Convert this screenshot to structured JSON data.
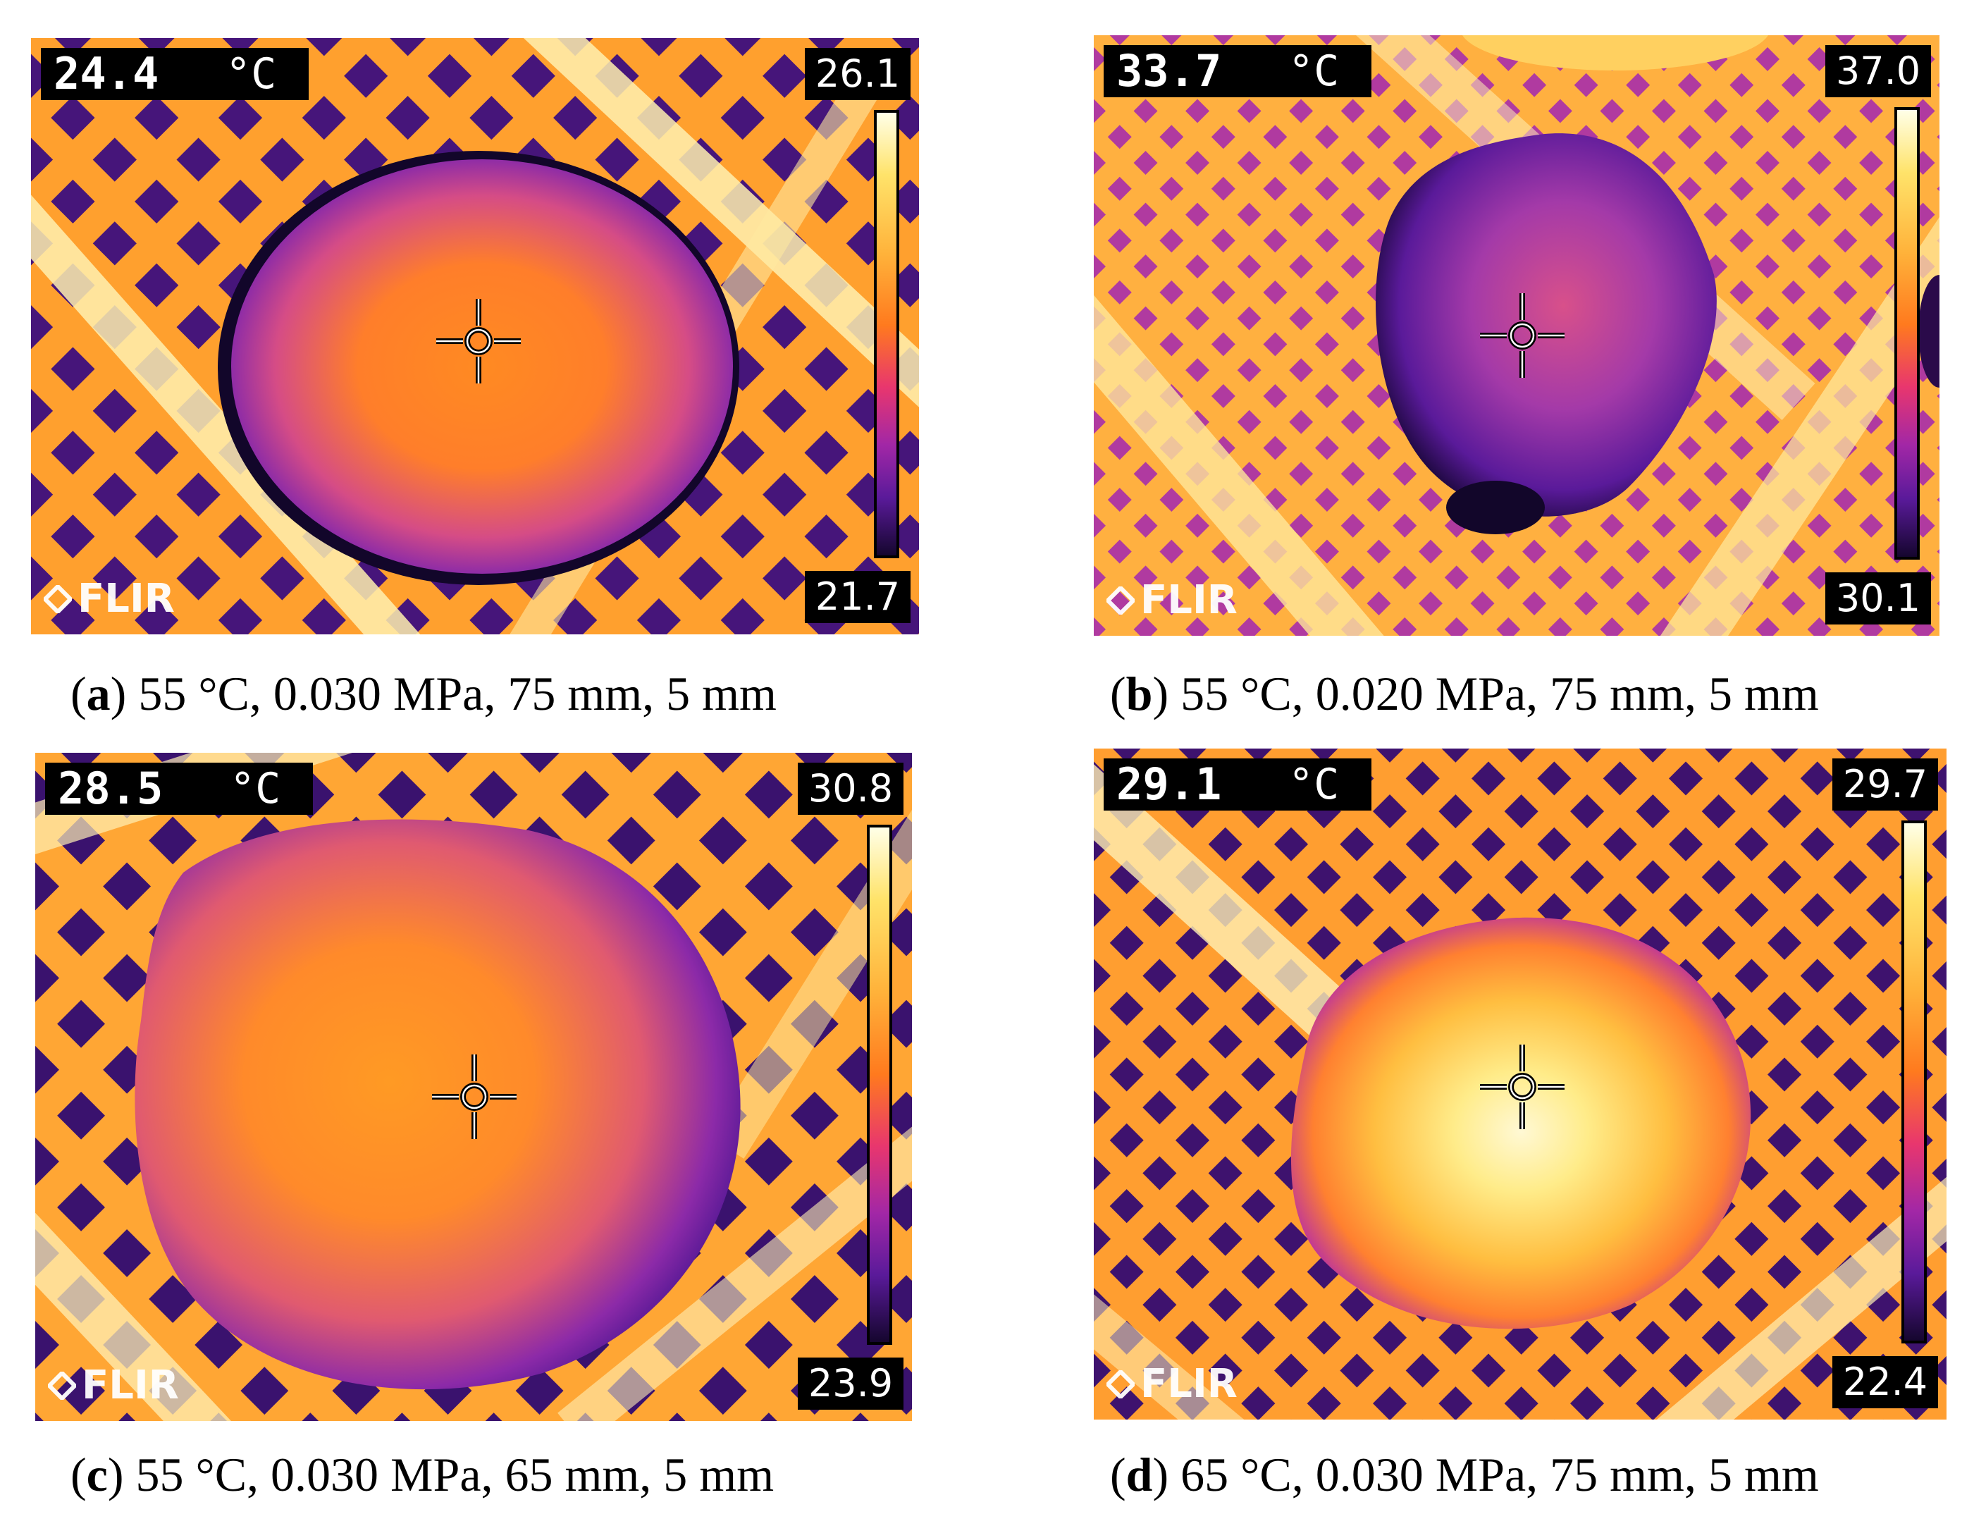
{
  "panels": [
    {
      "id": "a",
      "temp_readout": "24.4",
      "unit": "°C",
      "scale_max": "26.1",
      "scale_min": "21.7",
      "logo_text": "FLIR",
      "caption_letter": "a",
      "caption_text": "55 °C, 0.030 MPa, 75 mm, 5 mm"
    },
    {
      "id": "b",
      "temp_readout": "33.7",
      "unit": "°C",
      "scale_max": "37.0",
      "scale_min": "30.1",
      "logo_text": "FLIR",
      "caption_letter": "b",
      "caption_text": "55 °C, 0.020 MPa, 75 mm, 5 mm"
    },
    {
      "id": "c",
      "temp_readout": "28.5",
      "unit": "°C",
      "scale_max": "30.8",
      "scale_min": "23.9",
      "logo_text": "FLIR",
      "caption_letter": "c",
      "caption_text": "55 °C, 0.030 MPa, 65 mm, 5 mm"
    },
    {
      "id": "d",
      "temp_readout": "29.1",
      "unit": "°C",
      "scale_max": "29.7",
      "scale_min": "22.4",
      "logo_text": "FLIR",
      "caption_letter": "d",
      "caption_text": "65 °C, 0.030 MPa, 75 mm, 5 mm"
    }
  ],
  "colors": {
    "background_hot": "#ff9a2a",
    "mesh_cold": "#3a1266",
    "diagonal_bar": "#fff2b0"
  }
}
